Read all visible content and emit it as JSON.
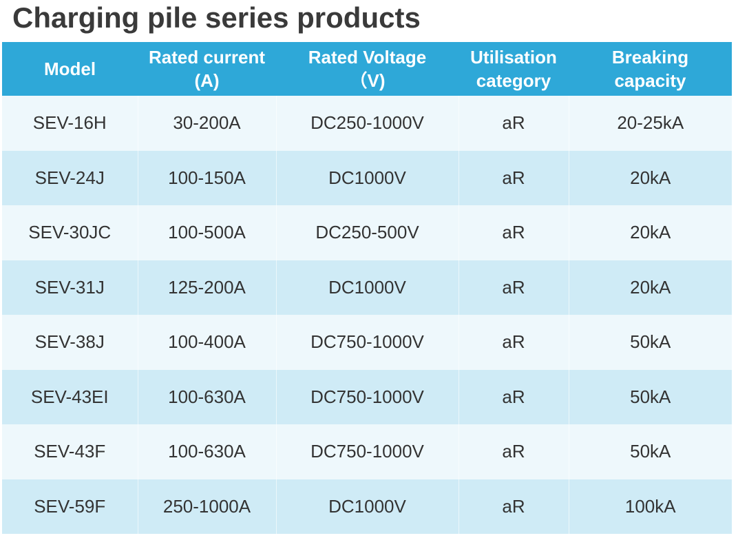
{
  "title": "Charging pile series products",
  "table": {
    "headers": [
      {
        "line1": "Model",
        "line2": ""
      },
      {
        "line1": "Rated current",
        "line2": "(A)"
      },
      {
        "line1": "Rated Voltage",
        "line2": "（V)"
      },
      {
        "line1": "Utilisation",
        "line2": "category"
      },
      {
        "line1": "Breaking",
        "line2": "capacity"
      }
    ],
    "rows": [
      {
        "model": "SEV-16H",
        "current": "30-200A",
        "voltage": "DC250-1000V",
        "category": "aR",
        "breaking": "20-25kA"
      },
      {
        "model": "SEV-24J",
        "current": "100-150A",
        "voltage": "DC1000V",
        "category": "aR",
        "breaking": "20kA"
      },
      {
        "model": "SEV-30JC",
        "current": "100-500A",
        "voltage": "DC250-500V",
        "category": "aR",
        "breaking": "20kA"
      },
      {
        "model": "SEV-31J",
        "current": "125-200A",
        "voltage": "DC1000V",
        "category": "aR",
        "breaking": "20kA"
      },
      {
        "model": "SEV-38J",
        "current": "100-400A",
        "voltage": "DC750-1000V",
        "category": "aR",
        "breaking": "50kA"
      },
      {
        "model": "SEV-43EI",
        "current": "100-630A",
        "voltage": "DC750-1000V",
        "category": "aR",
        "breaking": "50kA"
      },
      {
        "model": "SEV-43F",
        "current": "100-630A",
        "voltage": "DC750-1000V",
        "category": "aR",
        "breaking": "50kA"
      },
      {
        "model": "SEV-59F",
        "current": "250-1000A",
        "voltage": "DC1000V",
        "category": "aR",
        "breaking": "100kA"
      }
    ]
  },
  "colors": {
    "header_bg": "#2ea8d8",
    "row_light": "#eef8fc",
    "row_dark": "#cfebf6",
    "title_text": "#3a3a3a"
  }
}
